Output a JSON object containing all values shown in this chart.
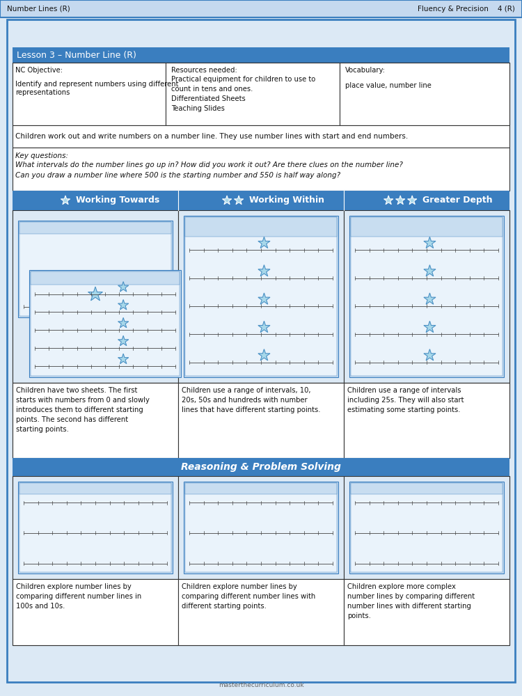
{
  "page_bg": "#dce9f5",
  "header_bg": "#c5d9ef",
  "header_text_left": "Number Lines (R)",
  "header_text_right": "Fluency & Precision    4 (R)",
  "lesson_header_bg": "#3a7ebf",
  "lesson_header_text": "Lesson 3 – Number Line (R)",
  "nc_objective_title": "NC Objective:",
  "nc_objective_body": "Identify and represent numbers using different\nrepresentations",
  "resources_title": "Resources needed:",
  "resources_body": "Practical equipment for children to use to\ncount in tens and ones.\nDifferentiated Sheets\nTeaching Slides",
  "vocabulary_title": "Vocabulary:",
  "vocabulary_body": "place value, number line",
  "description": "Children work out and write numbers on a number line. They use number lines with start and end numbers.",
  "key_questions_title": "Key questions:",
  "key_questions_body": "What intervals do the number lines go up in? How did you work it out? Are there clues on the number line?\nCan you draw a number line where 500 is the starting number and 550 is half way along?",
  "col_headers": [
    {
      "stars": 1,
      "text": "Working Towards"
    },
    {
      "stars": 2,
      "text": "Working Within"
    },
    {
      "stars": 3,
      "text": "Greater Depth"
    }
  ],
  "col_desc": [
    "Children have two sheets. The first\nstarts with numbers from 0 and slowly\nintroduces them to different starting\npoints. The second has different\nstarting points.",
    "Children use a range of intervals, 10,\n20s, 50s and hundreds with number\nlines that have different starting points.",
    "Children use a range of intervals\nincluding 25s. They will also start\nestimating some starting points."
  ],
  "reasoning_header": "Reasoning & Problem Solving",
  "reasoning_desc": [
    "Children explore number lines by\ncomparing different number lines in\n100s and 10s.",
    "Children explore number lines by\ncomparing different number lines with\ndifferent starting points.",
    "Children explore more complex\nnumber lines by comparing different\nnumber lines with different starting\npoints."
  ],
  "border_color": "#3a7ebf",
  "table_border": "#333333",
  "cell_bg": "#ffffff",
  "star_fill": "#a8d8ea",
  "star_edge": "#4a90c4",
  "ws_outer_bg": "#c8ddf0",
  "ws_inner_bg": "#eaf3fb",
  "ws_header_bg": "#c8ddf0"
}
